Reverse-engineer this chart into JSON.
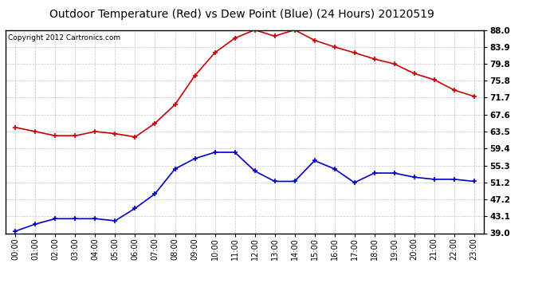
{
  "title": "Outdoor Temperature (Red) vs Dew Point (Blue) (24 Hours) 20120519",
  "copyright_text": "Copyright 2012 Cartronics.com",
  "x_labels": [
    "00:00",
    "01:00",
    "02:00",
    "03:00",
    "04:00",
    "05:00",
    "06:00",
    "07:00",
    "08:00",
    "09:00",
    "10:00",
    "11:00",
    "12:00",
    "13:00",
    "14:00",
    "15:00",
    "16:00",
    "17:00",
    "18:00",
    "19:00",
    "20:00",
    "21:00",
    "22:00",
    "23:00"
  ],
  "temp_red": [
    64.5,
    63.5,
    62.5,
    62.5,
    63.5,
    63.0,
    62.2,
    65.5,
    70.0,
    77.0,
    82.5,
    86.0,
    88.0,
    86.5,
    88.0,
    85.5,
    83.9,
    82.5,
    81.0,
    79.8,
    77.5,
    76.0,
    73.5,
    72.0
  ],
  "dew_blue": [
    39.5,
    41.2,
    42.5,
    42.5,
    42.5,
    42.0,
    45.0,
    48.5,
    54.5,
    57.0,
    58.5,
    58.5,
    54.0,
    51.5,
    51.5,
    56.5,
    54.5,
    51.2,
    53.5,
    53.5,
    52.5,
    52.0,
    52.0,
    51.5
  ],
  "y_ticks": [
    39.0,
    43.1,
    47.2,
    51.2,
    55.3,
    59.4,
    63.5,
    67.6,
    71.7,
    75.8,
    79.8,
    83.9,
    88.0
  ],
  "y_min": 39.0,
  "y_max": 88.0,
  "red_color": "#cc0000",
  "blue_color": "#0000cc",
  "bg_color": "#ffffff",
  "grid_color": "#bbbbbb",
  "title_fontsize": 10,
  "copyright_fontsize": 6.5,
  "tick_fontsize": 7,
  "ytick_fontsize": 7.5
}
